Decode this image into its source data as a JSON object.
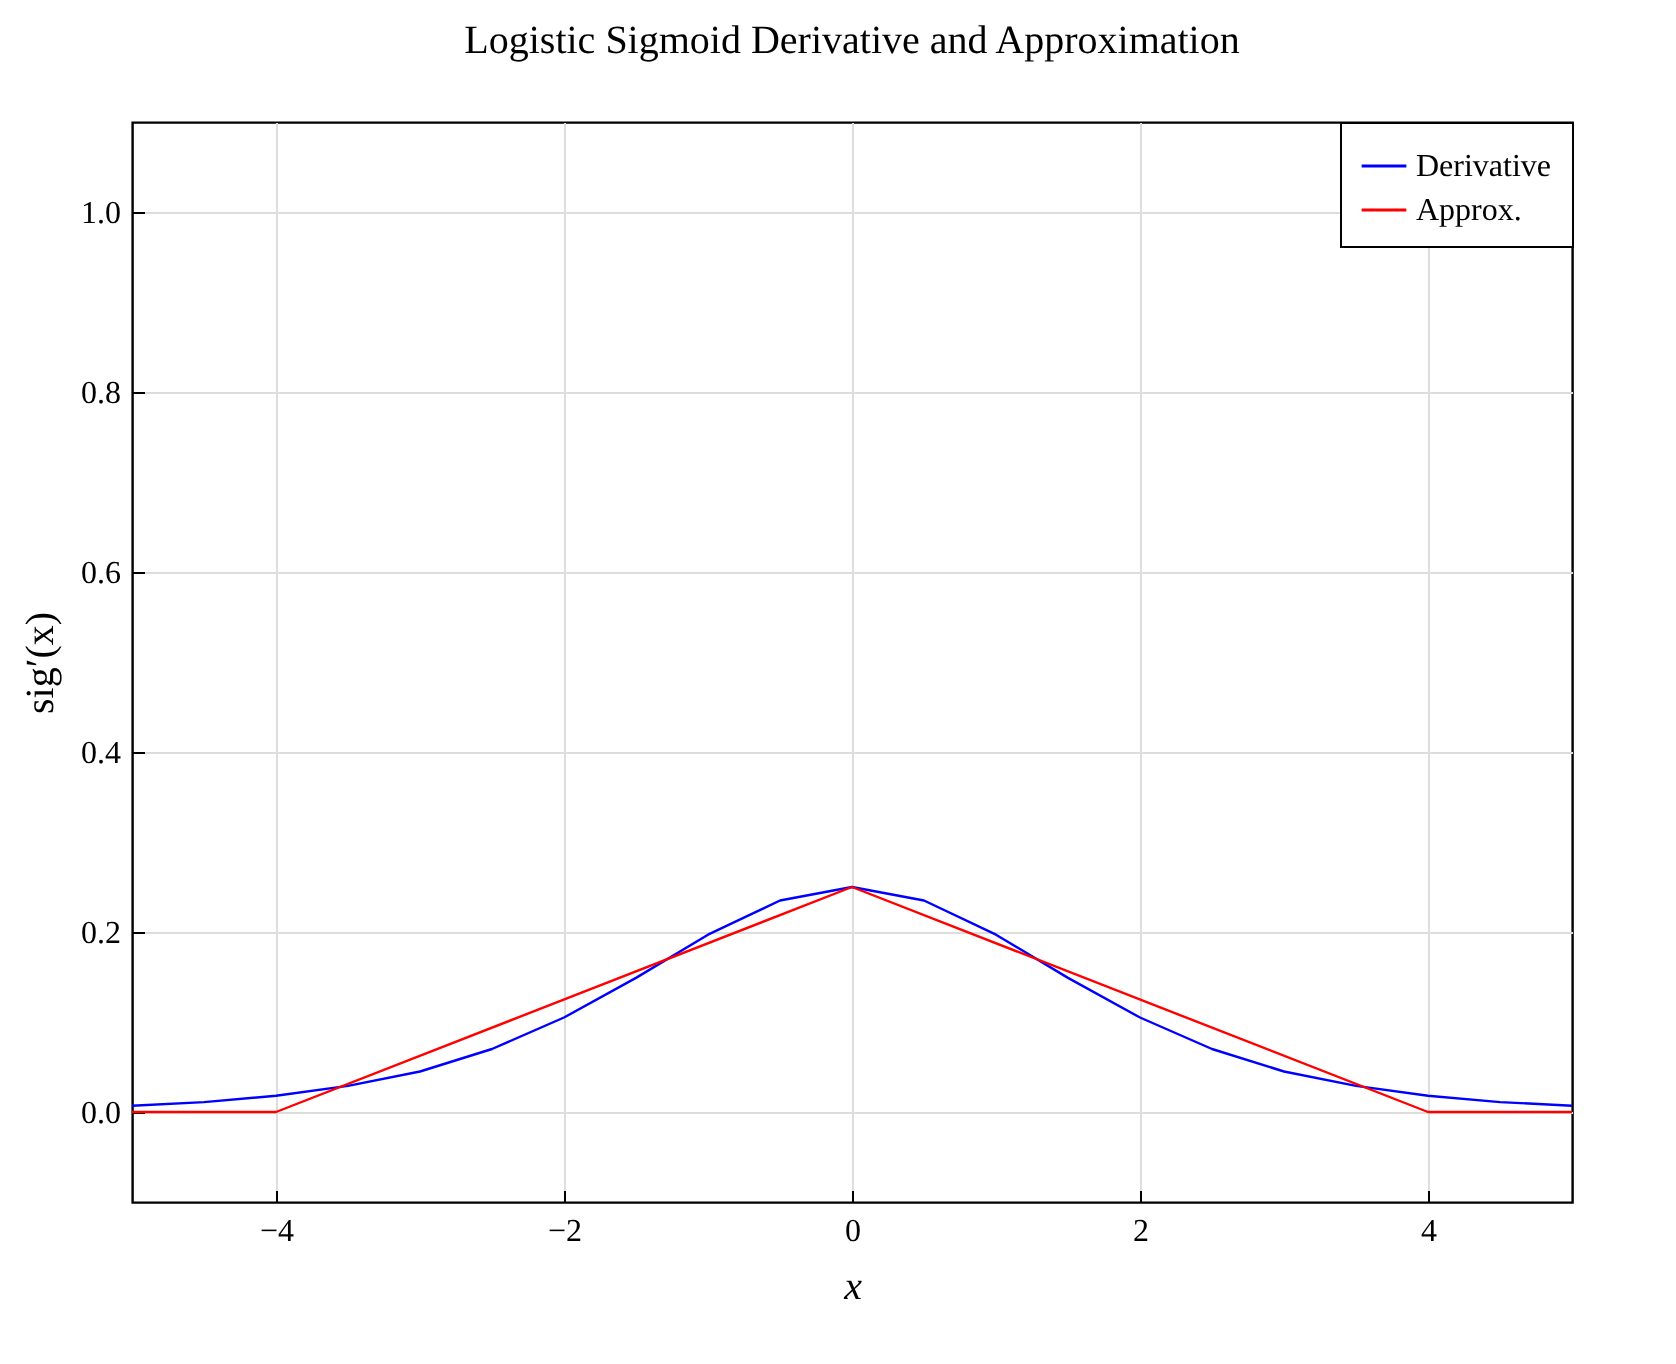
{
  "chart_data": {
    "type": "line",
    "title": "Logistic Sigmoid Derivative and Approximation",
    "xlabel": "x",
    "ylabel": "sig′(x)",
    "xlim": [
      -5,
      5
    ],
    "ylim": [
      -0.1,
      1.1
    ],
    "xticks": [
      {
        "value": -4,
        "label": "−4"
      },
      {
        "value": -2,
        "label": "−2"
      },
      {
        "value": 0,
        "label": "0"
      },
      {
        "value": 2,
        "label": "2"
      },
      {
        "value": 4,
        "label": "4"
      }
    ],
    "yticks": [
      {
        "value": 0,
        "label": "0.0"
      },
      {
        "value": 0.2,
        "label": "0.2"
      },
      {
        "value": 0.4,
        "label": "0.4"
      },
      {
        "value": 0.6,
        "label": "0.6"
      },
      {
        "value": 0.8,
        "label": "0.8"
      },
      {
        "value": 1,
        "label": "1.0"
      }
    ],
    "grid": true,
    "legend": "top right",
    "line_style": "solid",
    "marker": "none",
    "series": [
      {
        "name": "Derivative",
        "color": "#0000ff",
        "x": [
          -5,
          -4.5,
          -4,
          -3.5,
          -3,
          -2.5,
          -2,
          -1.5,
          -1,
          -0.5,
          0,
          0.5,
          1,
          1.5,
          2,
          2.5,
          3,
          3.5,
          4,
          4.5,
          5
        ],
        "values": [
          0.007,
          0.011,
          0.018,
          0.029,
          0.045,
          0.07,
          0.105,
          0.149,
          0.197,
          0.235,
          0.25,
          0.235,
          0.197,
          0.149,
          0.105,
          0.07,
          0.045,
          0.029,
          0.018,
          0.011,
          0.007
        ]
      },
      {
        "name": "Approx.",
        "color": "#ff0000",
        "x": [
          -5,
          -4,
          0,
          4,
          5
        ],
        "values": [
          0,
          0,
          0.25,
          0,
          0
        ]
      }
    ]
  }
}
